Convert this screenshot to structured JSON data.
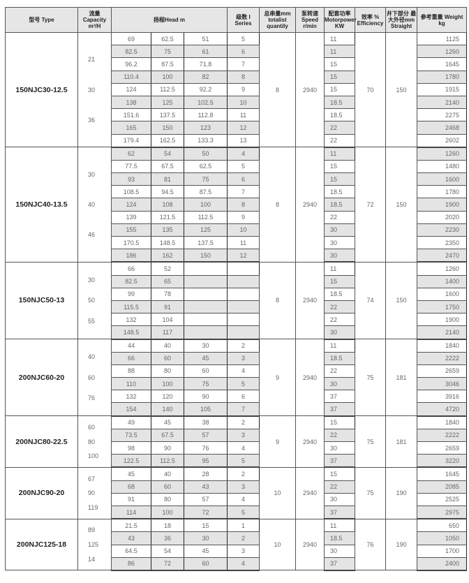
{
  "headers": {
    "type": "型号 Type",
    "capacity": "流量 Capacity m³/H",
    "head": "扬程Head m",
    "series": "级数 I Series",
    "totalist": "总串量mm totalist quantily",
    "speed": "泵转速 Speed r/min",
    "motor": "配套功率 Motorpower KW",
    "efficiency": "效率 % Efficiency",
    "straight": "井下部分 最大外径mm Straight",
    "weight": "参考重量 Weight kg"
  },
  "groups": [
    {
      "type": "150NJC30-12.5",
      "capacity": [
        "21",
        "30",
        "36"
      ],
      "totalist": "8",
      "speed": "2940",
      "efficiency": "70",
      "straight": "150",
      "rows": [
        [
          "69",
          "62.5",
          "51",
          "5",
          "11",
          "1125"
        ],
        [
          "82.5",
          "75",
          "61",
          "6",
          "11",
          "1260"
        ],
        [
          "96.2",
          "87.5",
          "71.8",
          "7",
          "15",
          "1645"
        ],
        [
          "110.4",
          "100",
          "82",
          "8",
          "15",
          "1780"
        ],
        [
          "124",
          "112.5",
          "92.2",
          "9",
          "15",
          "1915"
        ],
        [
          "138",
          "125",
          "102.5",
          "10",
          "18.5",
          "2140"
        ],
        [
          "151.6",
          "137.5",
          "112.8",
          "11",
          "18.5",
          "2275"
        ],
        [
          "165",
          "150",
          "123",
          "12",
          "22",
          "2468"
        ],
        [
          "179.4",
          "162.5",
          "133.3",
          "13",
          "22",
          "2602"
        ]
      ]
    },
    {
      "type": "150NJC40-13.5",
      "capacity": [
        "30",
        "40",
        "46"
      ],
      "totalist": "8",
      "speed": "2940",
      "efficiency": "72",
      "straight": "150",
      "rows": [
        [
          "62",
          "54",
          "50",
          "4",
          "11",
          "1260"
        ],
        [
          "77.5",
          "67.5",
          "62.5",
          "5",
          "15",
          "1480"
        ],
        [
          "93",
          "81",
          "75",
          "6",
          "15",
          "1600"
        ],
        [
          "108.5",
          "94.5",
          "87.5",
          "7",
          "18.5",
          "1780"
        ],
        [
          "124",
          "108",
          "100",
          "8",
          "18.5",
          "1900"
        ],
        [
          "139",
          "121.5",
          "112.5",
          "9",
          "22",
          "2020"
        ],
        [
          "155",
          "135",
          "125",
          "10",
          "30",
          "2230"
        ],
        [
          "170.5",
          "148.5",
          "137.5",
          "11",
          "30",
          "2350"
        ],
        [
          "186",
          "162",
          "150",
          "12",
          "30",
          "2470"
        ]
      ]
    },
    {
      "type": "150NJC50-13",
      "capacity": [
        "30",
        "50",
        "55"
      ],
      "totalist": "8",
      "speed": "2940",
      "efficiency": "74",
      "straight": "150",
      "rows": [
        [
          "66",
          "52",
          "",
          "",
          "11",
          "1260"
        ],
        [
          "82.5",
          "65",
          "",
          "",
          "15",
          "1400"
        ],
        [
          "99",
          "78",
          "",
          "",
          "18.5",
          "1600"
        ],
        [
          "115.5",
          "91",
          "",
          "",
          "22",
          "1750"
        ],
        [
          "132",
          "104",
          "",
          "",
          "22",
          "1900"
        ],
        [
          "148.5",
          "117",
          "",
          "",
          "30",
          "2140"
        ]
      ]
    },
    {
      "type": "200NJC60-20",
      "capacity": [
        "40",
        "60",
        "76"
      ],
      "totalist": "9",
      "speed": "2940",
      "efficiency": "75",
      "straight": "181",
      "rows": [
        [
          "44",
          "40",
          "30",
          "2",
          "11",
          "1840"
        ],
        [
          "66",
          "60",
          "45",
          "3",
          "18.5",
          "2222"
        ],
        [
          "88",
          "80",
          "60",
          "4",
          "22",
          "2659"
        ],
        [
          "110",
          "100",
          "75",
          "5",
          "30",
          "3046"
        ],
        [
          "132",
          "120",
          "90",
          "6",
          "37",
          "3916"
        ],
        [
          "154",
          "140",
          "105",
          "7",
          "37",
          "4720"
        ]
      ]
    },
    {
      "type": "200NJC80-22.5",
      "capacity": [
        "60",
        "80",
        "100"
      ],
      "totalist": "9",
      "speed": "2940",
      "efficiency": "75",
      "straight": "181",
      "rows": [
        [
          "49",
          "45",
          "38",
          "2",
          "15",
          "1840"
        ],
        [
          "73.5",
          "67.5",
          "57",
          "3",
          "22",
          "2222"
        ],
        [
          "98",
          "90",
          "76",
          "4",
          "30",
          "2659"
        ],
        [
          "122.5",
          "112.5",
          "95",
          "5",
          "37",
          "3220"
        ]
      ]
    },
    {
      "type": "200NJC90-20",
      "capacity": [
        "67",
        "90",
        "119"
      ],
      "totalist": "10",
      "speed": "2940",
      "efficiency": "75",
      "straight": "190",
      "rows": [
        [
          "45",
          "40",
          "28",
          "2",
          "15",
          "1645"
        ],
        [
          "68",
          "60",
          "43",
          "3",
          "22",
          "2085"
        ],
        [
          "91",
          "80",
          "57",
          "4",
          "30",
          "2525"
        ],
        [
          "114",
          "100",
          "72",
          "5",
          "37",
          "2975"
        ]
      ]
    },
    {
      "type": "200NJC125-18",
      "capacity": [
        "89",
        "125",
        "14"
      ],
      "totalist": "10",
      "speed": "2940",
      "efficiency": "76",
      "straight": "190",
      "rows": [
        [
          "21.5",
          "18",
          "15",
          "1",
          "11",
          "650"
        ],
        [
          "43",
          "36",
          "30",
          "2",
          "18.5",
          "1050"
        ],
        [
          "64.5",
          "54",
          "45",
          "3",
          "30",
          "1700"
        ],
        [
          "86",
          "72",
          "60",
          "4",
          "37",
          "2400"
        ]
      ]
    }
  ]
}
